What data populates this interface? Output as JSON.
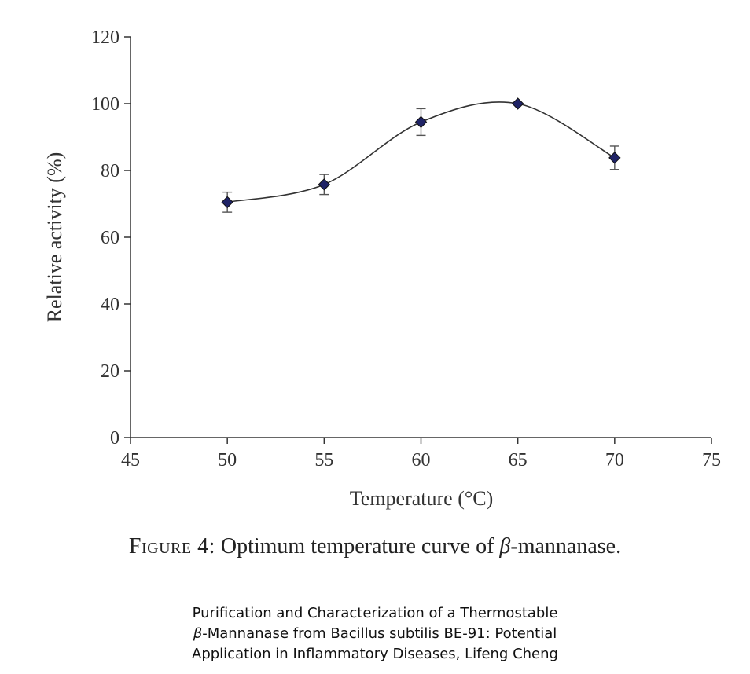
{
  "chart_data": {
    "type": "line",
    "xlabel": "Temperature (°C)",
    "ylabel": "Relative activity (%)",
    "xlim": [
      45,
      75
    ],
    "ylim": [
      0,
      120
    ],
    "xticks": [
      45,
      50,
      55,
      60,
      65,
      70,
      75
    ],
    "yticks": [
      0,
      20,
      40,
      60,
      80,
      100,
      120
    ],
    "grid": false,
    "legend": "none",
    "marker": "diamond",
    "smooth": true,
    "series": [
      {
        "x": [
          50,
          55,
          60,
          65,
          70
        ],
        "y": [
          70.5,
          75.8,
          94.5,
          100,
          83.8
        ],
        "error": [
          3,
          3,
          4,
          0,
          3.5
        ]
      }
    ],
    "colors": {
      "marker": "#1f2366",
      "line": "#333333",
      "axis": "#333333"
    }
  },
  "caption": {
    "label": "Figure 4:",
    "text_pre": "Optimum temperature curve of ",
    "beta": "β",
    "text_post": "-mannanase."
  },
  "source": {
    "line1": "Purification and Characterization of a Thermostable",
    "line2_beta": "β",
    "line2_rest": "-Mannanase from Bacillus subtilis BE-91: Potential",
    "line3": "Application in Inflammatory Diseases, Lifeng Cheng"
  }
}
